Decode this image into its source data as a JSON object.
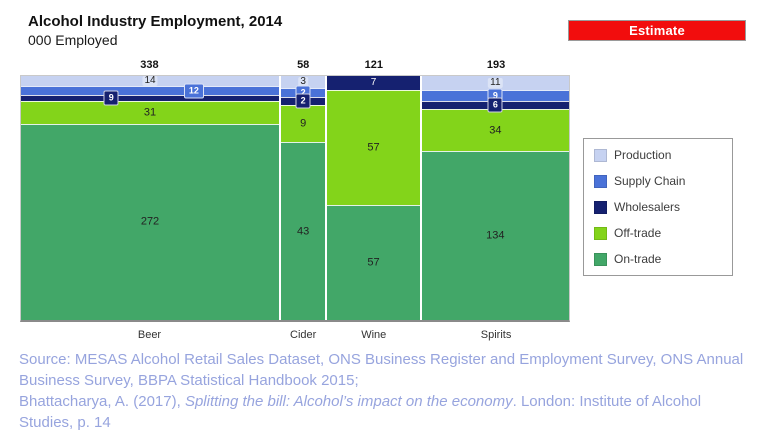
{
  "header": {
    "title": "Alcohol Industry Employment, 2014",
    "subtitle": "000 Employed",
    "estimate_label": "Estimate",
    "estimate_color": "#f20d0d"
  },
  "chart_data": {
    "type": "bar",
    "variant": "mosaic-100pct-stacked",
    "title": "Alcohol Industry Employment, 2014",
    "subtitle": "000 Employed",
    "categories": [
      "Beer",
      "Cider",
      "Wine",
      "Spirits"
    ],
    "totals": [
      338,
      58,
      121,
      193
    ],
    "series": [
      {
        "name": "Production",
        "color": "#c6d2f1",
        "values": [
          14,
          3,
          0,
          11
        ]
      },
      {
        "name": "Supply Chain",
        "color": "#4a72d8",
        "values": [
          12,
          2,
          0,
          9
        ]
      },
      {
        "name": "Wholesalers",
        "color": "#152170",
        "values": [
          9,
          2,
          7,
          6
        ]
      },
      {
        "name": "Off-trade",
        "color": "#83d41a",
        "values": [
          31,
          9,
          57,
          34
        ]
      },
      {
        "name": "On-trade",
        "color": "#42a768",
        "values": [
          272,
          43,
          57,
          134
        ]
      }
    ],
    "layout_hints": {
      "bar_width_proportional_to_totals": true,
      "bars_normalized_to_full_height": true,
      "legend_position": "right",
      "grid": false,
      "label_offsets_pct": {
        "Beer": {
          "Supply Chain": 67,
          "Wholesalers": 35
        }
      }
    }
  },
  "legend": {
    "items": [
      {
        "label": "Production",
        "color": "#c6d2f1"
      },
      {
        "label": "Supply Chain",
        "color": "#4a72d8"
      },
      {
        "label": "Wholesalers",
        "color": "#152170"
      },
      {
        "label": "Off-trade",
        "color": "#83d41a"
      },
      {
        "label": "On-trade",
        "color": "#42a768"
      }
    ]
  },
  "source": {
    "line1": "Source: MESAS Alcohol Retail Sales Dataset, ONS Business Register and Employment Survey, ONS Annual Business Survey, BBPA Statistical Handbook 2015;",
    "cite_prefix": "Bhattacharya, A. (2017), ",
    "cite_italic": "Splitting the bill: Alcohol’s impact on the economy",
    "cite_suffix": ". London: Institute of Alcohol Studies, p. 14"
  }
}
